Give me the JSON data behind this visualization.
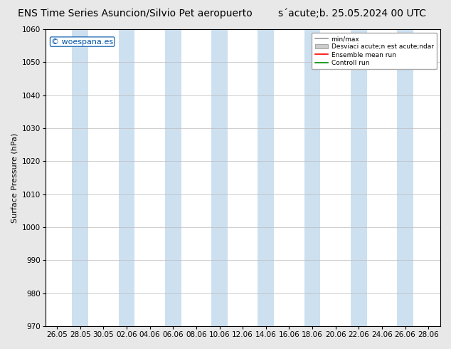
{
  "title_left": "ENS Time Series Asuncion/Silvio Pet aeropuerto",
  "title_right": "s´acute;b. 25.05.2024 00 UTC",
  "title_display": "ENS Time Series Asuncion/Silvio Pet aeropuerto        s acute;b. 25.05.2024 00 UTC",
  "ylabel": "Surface Pressure (hPa)",
  "ylim": [
    970,
    1060
  ],
  "yticks": [
    970,
    980,
    990,
    1000,
    1010,
    1020,
    1030,
    1040,
    1050,
    1060
  ],
  "xtick_labels": [
    "26.05",
    "28.05",
    "30.05",
    "02.06",
    "04.06",
    "06.06",
    "08.06",
    "10.06",
    "12.06",
    "14.06",
    "16.06",
    "18.06",
    "20.06",
    "22.06",
    "24.06",
    "26.06",
    "28.06"
  ],
  "bg_color": "#e8e8e8",
  "plot_bg_color": "#ffffff",
  "band_color": "#cce0f0",
  "watermark": "© woespana.es",
  "legend_entries": [
    "min/max",
    "Desviaci acute;n est acute;ndar",
    "Ensemble mean run",
    "Controll run"
  ],
  "legend_colors_line": [
    "#999999",
    "#bbbbbb",
    "#ff0000",
    "#008800"
  ],
  "title_fontsize": 10,
  "axis_fontsize": 8,
  "tick_fontsize": 7.5,
  "band_indices_odd": [
    1,
    3,
    5,
    7,
    9,
    11,
    13,
    15
  ]
}
